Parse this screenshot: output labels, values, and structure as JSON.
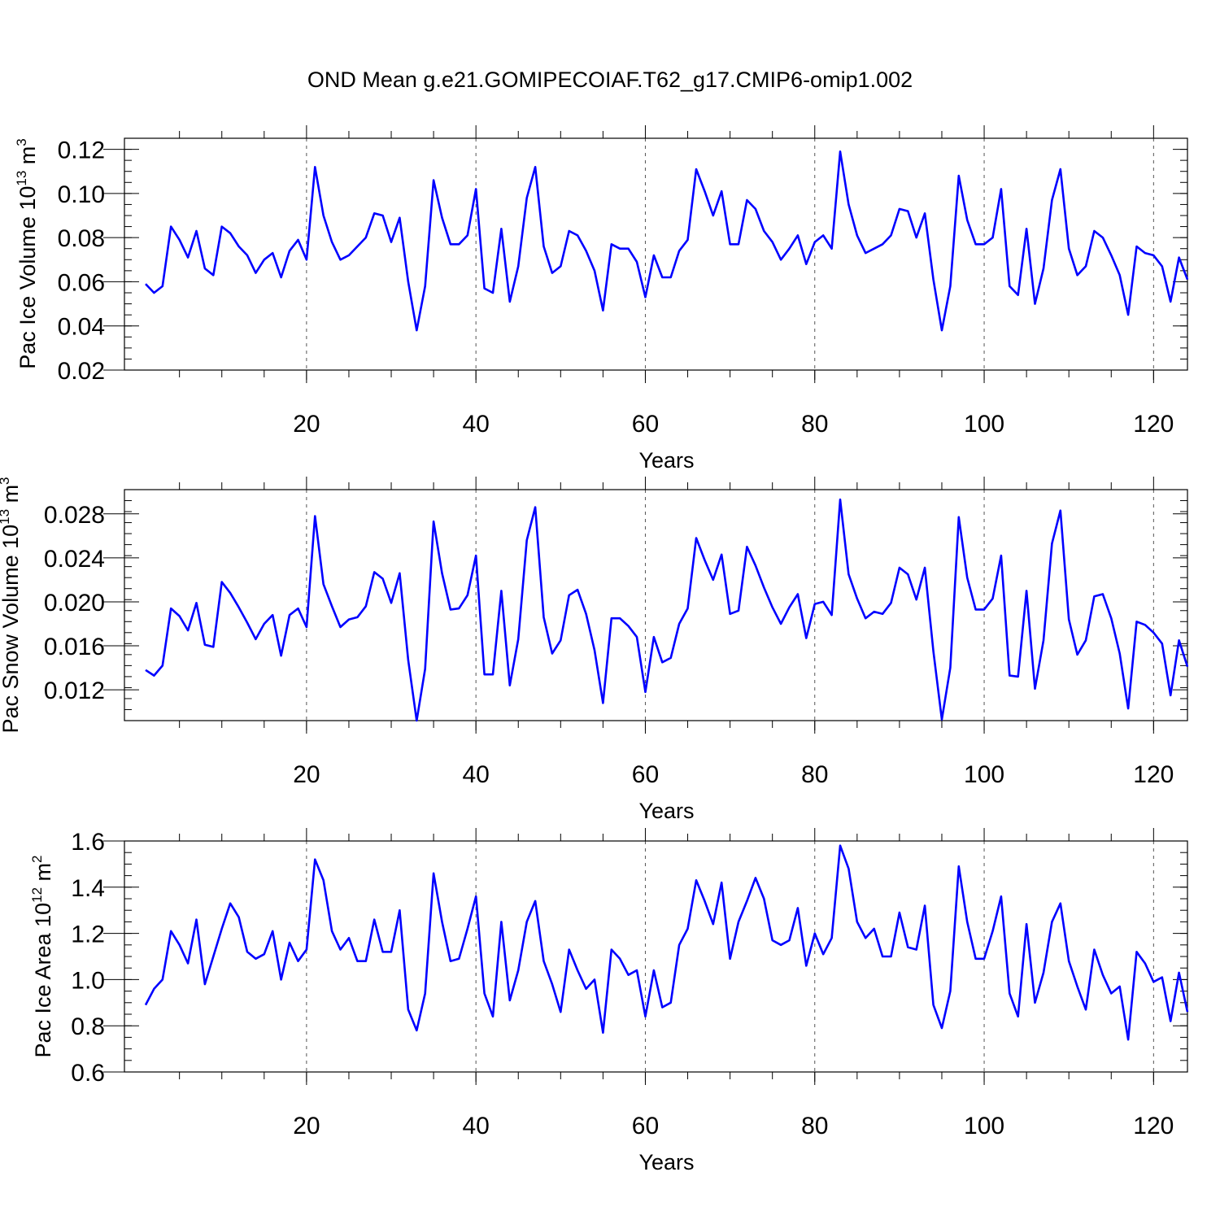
{
  "title": "OND Mean g.e21.GOMIPECOIAF.T62_g17.CMIP6-omip1.002",
  "line_color": "#0000ff",
  "chart_data": [
    {
      "type": "line",
      "series": [
        {
          "name": "Pac Ice Volume",
          "values": [
            0.059,
            0.055,
            0.058,
            0.085,
            0.079,
            0.071,
            0.083,
            0.066,
            0.063,
            0.085,
            0.082,
            0.076,
            0.072,
            0.064,
            0.07,
            0.073,
            0.062,
            0.074,
            0.079,
            0.07,
            0.112,
            0.09,
            0.078,
            0.07,
            0.072,
            0.076,
            0.08,
            0.091,
            0.09,
            0.078,
            0.089,
            0.06,
            0.038,
            0.058,
            0.106,
            0.089,
            0.077,
            0.077,
            0.081,
            0.102,
            0.057,
            0.055,
            0.084,
            0.051,
            0.067,
            0.098,
            0.112,
            0.076,
            0.064,
            0.067,
            0.083,
            0.081,
            0.074,
            0.065,
            0.047,
            0.077,
            0.075,
            0.075,
            0.069,
            0.053,
            0.072,
            0.062,
            0.062,
            0.074,
            0.079,
            0.111,
            0.101,
            0.09,
            0.101,
            0.077,
            0.077,
            0.097,
            0.093,
            0.083,
            0.078,
            0.07,
            0.075,
            0.081,
            0.068,
            0.078,
            0.081,
            0.075,
            0.119,
            0.095,
            0.081,
            0.073,
            0.075,
            0.077,
            0.081,
            0.093,
            0.092,
            0.08,
            0.091,
            0.061,
            0.038,
            0.058,
            0.108,
            0.088,
            0.077,
            0.077,
            0.08,
            0.102,
            0.058,
            0.054,
            0.084,
            0.05,
            0.066,
            0.097,
            0.111,
            0.075,
            0.063,
            0.067,
            0.083,
            0.08,
            0.072,
            0.063,
            0.045,
            0.076,
            0.073,
            0.072,
            0.067,
            0.051,
            0.071,
            0.061
          ]
        }
      ],
      "x_start": 1,
      "xlabel": "Years",
      "ylabel": "Pac Ice Volume 10",
      "ylabel_exp": "13",
      "ylabel_unit": "m",
      "ylabel_unit_exp": "3",
      "xlim": [
        1,
        124
      ],
      "ylim": [
        0.02,
        0.125
      ],
      "x_ticks": [
        "20",
        "40",
        "60",
        "80",
        "100",
        "120"
      ],
      "y_ticks": [
        "0.02",
        "0.04",
        "0.06",
        "0.08",
        "0.10",
        "0.12"
      ],
      "grid": "dashed vertical at x ticks"
    },
    {
      "type": "line",
      "series": [
        {
          "name": "Pac Snow Volume",
          "values": [
            0.0138,
            0.0133,
            0.0142,
            0.0194,
            0.0187,
            0.0174,
            0.0199,
            0.0161,
            0.0159,
            0.0218,
            0.0208,
            0.0195,
            0.0181,
            0.0166,
            0.018,
            0.0188,
            0.0151,
            0.0188,
            0.0194,
            0.0177,
            0.0278,
            0.0216,
            0.0196,
            0.0177,
            0.0184,
            0.0186,
            0.0196,
            0.0227,
            0.0221,
            0.0199,
            0.0226,
            0.0147,
            0.0092,
            0.0139,
            0.0273,
            0.0226,
            0.0193,
            0.0194,
            0.0206,
            0.0242,
            0.0134,
            0.0134,
            0.021,
            0.0124,
            0.0166,
            0.0256,
            0.0286,
            0.0186,
            0.0153,
            0.0165,
            0.0206,
            0.0211,
            0.0189,
            0.0156,
            0.0108,
            0.0185,
            0.0185,
            0.0178,
            0.0168,
            0.0118,
            0.0168,
            0.0145,
            0.0149,
            0.018,
            0.0194,
            0.0258,
            0.0238,
            0.022,
            0.0243,
            0.0189,
            0.0192,
            0.025,
            0.0233,
            0.0213,
            0.0195,
            0.018,
            0.0195,
            0.0207,
            0.0167,
            0.0198,
            0.02,
            0.0188,
            0.0293,
            0.0225,
            0.0203,
            0.0185,
            0.0191,
            0.0189,
            0.0199,
            0.0231,
            0.0225,
            0.0202,
            0.0231,
            0.0155,
            0.0093,
            0.014,
            0.0277,
            0.0222,
            0.0193,
            0.0193,
            0.0203,
            0.0242,
            0.0133,
            0.0132,
            0.021,
            0.0121,
            0.0165,
            0.0253,
            0.0283,
            0.0184,
            0.0152,
            0.0165,
            0.0205,
            0.0207,
            0.0185,
            0.0153,
            0.0103,
            0.0182,
            0.0179,
            0.0172,
            0.0162,
            0.0115,
            0.0165,
            0.0141
          ]
        }
      ],
      "x_start": 1,
      "xlabel": "Years",
      "ylabel": "Pac Snow Volume 10",
      "ylabel_exp": "13",
      "ylabel_unit": "m",
      "ylabel_unit_exp": "3",
      "xlim": [
        1,
        124
      ],
      "ylim": [
        0.0092,
        0.0302
      ],
      "x_ticks": [
        "20",
        "40",
        "60",
        "80",
        "100",
        "120"
      ],
      "y_ticks": [
        "0.012",
        "0.016",
        "0.020",
        "0.024",
        "0.028"
      ],
      "grid": "dashed vertical at x ticks"
    },
    {
      "type": "line",
      "series": [
        {
          "name": "Pac Ice Area",
          "values": [
            0.89,
            0.96,
            1.0,
            1.21,
            1.15,
            1.07,
            1.26,
            0.98,
            1.1,
            1.22,
            1.33,
            1.27,
            1.12,
            1.09,
            1.11,
            1.21,
            1.0,
            1.16,
            1.08,
            1.13,
            1.52,
            1.43,
            1.21,
            1.13,
            1.18,
            1.08,
            1.08,
            1.26,
            1.12,
            1.12,
            1.3,
            0.87,
            0.78,
            0.94,
            1.46,
            1.25,
            1.08,
            1.09,
            1.22,
            1.36,
            0.94,
            0.84,
            1.25,
            0.91,
            1.04,
            1.25,
            1.34,
            1.08,
            0.98,
            0.86,
            1.13,
            1.04,
            0.96,
            1.0,
            0.77,
            1.13,
            1.09,
            1.02,
            1.04,
            0.84,
            1.04,
            0.88,
            0.9,
            1.15,
            1.22,
            1.43,
            1.34,
            1.24,
            1.42,
            1.09,
            1.25,
            1.34,
            1.44,
            1.35,
            1.17,
            1.15,
            1.17,
            1.31,
            1.06,
            1.2,
            1.11,
            1.18,
            1.58,
            1.48,
            1.25,
            1.18,
            1.22,
            1.1,
            1.1,
            1.29,
            1.14,
            1.13,
            1.32,
            0.89,
            0.79,
            0.95,
            1.49,
            1.25,
            1.09,
            1.09,
            1.21,
            1.36,
            0.94,
            0.84,
            1.24,
            0.9,
            1.03,
            1.25,
            1.33,
            1.08,
            0.97,
            0.87,
            1.13,
            1.02,
            0.94,
            0.97,
            0.74,
            1.12,
            1.07,
            0.99,
            1.01,
            0.82,
            1.03,
            0.86
          ]
        }
      ],
      "x_start": 1,
      "xlabel": "Years",
      "ylabel": "Pac Ice Area 10",
      "ylabel_exp": "12",
      "ylabel_unit": "m",
      "ylabel_unit_exp": "2",
      "xlim": [
        1,
        124
      ],
      "ylim": [
        0.6,
        1.6
      ],
      "x_ticks": [
        "20",
        "40",
        "60",
        "80",
        "100",
        "120"
      ],
      "y_ticks": [
        "0.6",
        "0.8",
        "1.0",
        "1.2",
        "1.4",
        "1.6"
      ],
      "grid": "dashed vertical at x ticks"
    }
  ]
}
